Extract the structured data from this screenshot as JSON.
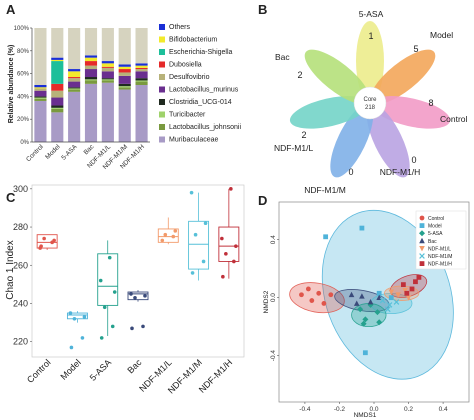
{
  "panels": {
    "A": {
      "letter": "A",
      "chart_data": {
        "type": "bar",
        "stacked": true,
        "ylabel": "Relative abundance (%)",
        "yticks": [
          "0%",
          "20%",
          "40%",
          "60%",
          "80%",
          "100%"
        ],
        "ylim": [
          0,
          100
        ],
        "categories": [
          "Control",
          "Model",
          "5-ASA",
          "Bac",
          "NDF-M1/L",
          "NDF-M1/M",
          "NDF-M1/H"
        ],
        "legend_position": "right",
        "series": [
          {
            "name": "Muribaculaceae",
            "color": "#a89bc6",
            "values": [
              36,
              26,
              44,
              51,
              52,
              46,
              50
            ]
          },
          {
            "name": "Lactobacillus_johnsonii",
            "color": "#7a9a3f",
            "values": [
              2,
              3,
              2,
              3,
              2,
              2,
              3
            ]
          },
          {
            "name": "Turicibacter",
            "color": "#9fd26b",
            "values": [
              1,
              1,
              1,
              1,
              1,
              1,
              1
            ]
          },
          {
            "name": "Clostridia_UCG-014",
            "color": "#1f2a1f",
            "values": [
              1,
              2,
              1,
              2,
              1,
              2,
              2
            ]
          },
          {
            "name": "Lactobacillus_murinus",
            "color": "#6a2f8f",
            "values": [
              5,
              7,
              5,
              7,
              6,
              7,
              6
            ]
          },
          {
            "name": "Desulfovibrio",
            "color": "#b7b27a",
            "values": [
              2,
              6,
              3,
              3,
              3,
              3,
              2
            ]
          },
          {
            "name": "Dubosiella",
            "color": "#e52a2a",
            "values": [
              0,
              6,
              1,
              4,
              1,
              3,
              1
            ]
          },
          {
            "name": "Escherichia-Shigella",
            "color": "#1dbf9a",
            "values": [
              0,
              20,
              0,
              0,
              0,
              0,
              0
            ]
          },
          {
            "name": "Bifidobacterium",
            "color": "#f2ea2b",
            "values": [
              1,
              1,
              5,
              3,
              3,
              2,
              2
            ]
          },
          {
            "name": "Others",
            "color": "#1a2fd6",
            "values": [
              2,
              2,
              2,
              2,
              2,
              2,
              2
            ]
          },
          {
            "name": "",
            "color": "#d6d3bf",
            "values": [
              50,
              26,
              36,
              24,
              29,
              32,
              31
            ]
          }
        ]
      }
    },
    "B": {
      "letter": "B",
      "core_label": "Core",
      "core_value": "218",
      "petals": [
        {
          "name": "5-ASA",
          "count": "1",
          "color": "#ecec8c"
        },
        {
          "name": "Model",
          "count": "5",
          "color": "#f3a65a"
        },
        {
          "name": "Control",
          "count": "8",
          "color": "#f29bc7"
        },
        {
          "name": "NDF-M1/H",
          "count": "0",
          "color": "#b9a3e2"
        },
        {
          "name": "NDF-M1/M",
          "count": "0",
          "color": "#7fb0e8"
        },
        {
          "name": "NDF-M1/L",
          "count": "2",
          "color": "#73d4c8"
        },
        {
          "name": "Bac",
          "count": "2",
          "color": "#b5e07a"
        }
      ]
    },
    "C": {
      "letter": "C",
      "chart_data": {
        "type": "box",
        "ylabel": "Chao 1 Index",
        "ylim": [
          212,
          302
        ],
        "yticks": [
          220,
          240,
          260,
          280,
          300
        ],
        "categories": [
          "Control",
          "Model",
          "5-ASA",
          "Bac",
          "NDF-M1/L",
          "NDF-M1/M",
          "NDF-M1/H"
        ],
        "series": [
          {
            "name": "Control",
            "color": "#e0554b",
            "q1": 269,
            "median": 272,
            "q3": 276,
            "min": 268,
            "max": 276,
            "points": [
              270,
              272,
              274,
              273,
              269
            ]
          },
          {
            "name": "Model",
            "color": "#4fb3d9",
            "q1": 232,
            "median": 234,
            "q3": 235,
            "min": 230,
            "max": 236,
            "points": [
              217,
              222,
              232,
              233,
              235
            ]
          },
          {
            "name": "5-ASA",
            "color": "#25a18e",
            "q1": 239,
            "median": 249,
            "q3": 266,
            "min": 223,
            "max": 273,
            "points": [
              222,
              228,
              238,
              246,
              252,
              264
            ]
          },
          {
            "name": "Bac",
            "color": "#3a4a7a",
            "q1": 242,
            "median": 245,
            "q3": 246,
            "min": 241,
            "max": 247,
            "points": [
              227,
              228,
              243,
              244,
              245
            ]
          },
          {
            "name": "NDF-M1/L",
            "color": "#f29a6a",
            "q1": 272,
            "median": 275,
            "q3": 279,
            "min": 271,
            "max": 285,
            "points": [
              273,
              275,
              276,
              278
            ]
          },
          {
            "name": "NDF-M1/M",
            "color": "#57c0d8",
            "q1": 258,
            "median": 271,
            "q3": 283,
            "min": 252,
            "max": 298,
            "points": [
              256,
              262,
              276,
              282,
              298
            ]
          },
          {
            "name": "NDF-M1/H",
            "color": "#c0303a",
            "q1": 262,
            "median": 270,
            "q3": 280,
            "min": 253,
            "max": 300,
            "points": [
              254,
              262,
              266,
              270,
              274,
              300
            ]
          }
        ]
      }
    },
    "D": {
      "letter": "D",
      "chart_data": {
        "type": "scatter",
        "xlabel": "NMDS1",
        "ylabel": "NMDS2",
        "xlim": [
          -0.55,
          0.55
        ],
        "ylim": [
          -0.72,
          0.66
        ],
        "xticks": [
          "-0.4",
          "-0.2",
          "0.0",
          "0.2",
          "0.4"
        ],
        "yticks": [
          "-0.4",
          "0.0",
          "0.4"
        ],
        "xtick_values": [
          -0.4,
          -0.2,
          0.0,
          0.2,
          0.4
        ],
        "ytick_values": [
          -0.4,
          0.0,
          0.4
        ],
        "legend_position": "top-right",
        "series": [
          {
            "name": "Control",
            "color": "#e0554b",
            "marker": "circle",
            "ellipse": {
              "cx": -0.33,
              "cy": 0.0,
              "rx": 0.16,
              "ry": 0.1,
              "angle": 10
            },
            "points": [
              [
                -0.42,
                0.02
              ],
              [
                -0.38,
                0.06
              ],
              [
                -0.32,
                0.03
              ],
              [
                -0.29,
                -0.04
              ],
              [
                -0.36,
                -0.02
              ],
              [
                -0.25,
                0.02
              ]
            ]
          },
          {
            "name": "Model",
            "color": "#4fb3d9",
            "marker": "square",
            "ellipse": {
              "cx": 0.08,
              "cy": 0.02,
              "rx": 0.36,
              "ry": 0.6,
              "angle": -20
            },
            "points": [
              [
                -0.28,
                0.42
              ],
              [
                -0.07,
                0.48
              ],
              [
                0.03,
                0.03
              ],
              [
                0.1,
                0.0
              ],
              [
                -0.05,
                -0.38
              ]
            ]
          },
          {
            "name": "5-ASA",
            "color": "#25a18e",
            "marker": "diamond",
            "ellipse": {
              "cx": -0.03,
              "cy": -0.12,
              "rx": 0.1,
              "ry": 0.08,
              "angle": 0
            },
            "points": [
              [
                -0.08,
                -0.08
              ],
              [
                -0.02,
                -0.05
              ],
              [
                0.02,
                -0.1
              ],
              [
                -0.05,
                -0.15
              ],
              [
                0.03,
                -0.17
              ],
              [
                -0.06,
                -0.18
              ]
            ]
          },
          {
            "name": "Bac",
            "color": "#3a4a7a",
            "marker": "triangle",
            "ellipse": {
              "cx": -0.07,
              "cy": -0.02,
              "rx": 0.16,
              "ry": 0.07,
              "angle": 10
            },
            "points": [
              [
                -0.13,
                0.02
              ],
              [
                -0.07,
                0.01
              ],
              [
                -0.02,
                -0.03
              ],
              [
                0.03,
                0.0
              ],
              [
                -0.1,
                -0.04
              ]
            ]
          },
          {
            "name": "NDF-M1/L",
            "color": "#f29a6a",
            "marker": "tri-down",
            "ellipse": {
              "cx": 0.16,
              "cy": 0.03,
              "rx": 0.1,
              "ry": 0.05,
              "angle": 0
            },
            "points": [
              [
                0.1,
                0.04
              ],
              [
                0.14,
                0.02
              ],
              [
                0.18,
                0.05
              ],
              [
                0.2,
                0.0
              ]
            ]
          },
          {
            "name": "NDF-M1/M",
            "color": "#57c0d8",
            "marker": "cross",
            "ellipse": {
              "cx": 0.1,
              "cy": -0.04,
              "rx": 0.12,
              "ry": 0.07,
              "angle": 0
            },
            "points": [
              [
                0.05,
                -0.02
              ],
              [
                0.09,
                -0.05
              ],
              [
                0.13,
                -0.03
              ],
              [
                0.08,
                -0.08
              ]
            ]
          },
          {
            "name": "NDF-M1/H",
            "color": "#c0303a",
            "marker": "square",
            "ellipse": {
              "cx": 0.2,
              "cy": 0.08,
              "rx": 0.11,
              "ry": 0.07,
              "angle": -20
            },
            "points": [
              [
                0.17,
                0.09
              ],
              [
                0.22,
                0.06
              ],
              [
                0.24,
                0.11
              ],
              [
                0.19,
                0.03
              ],
              [
                0.26,
                0.14
              ]
            ]
          }
        ]
      }
    }
  }
}
